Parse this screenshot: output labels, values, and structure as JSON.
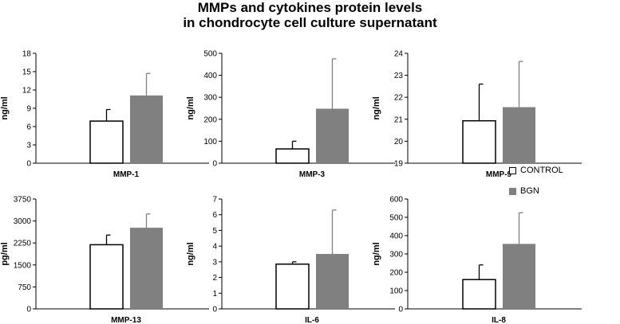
{
  "title_line1": "MMPs and cytokines protein levels",
  "title_line2": "in chondrocyte cell culture supernatant",
  "legend": [
    {
      "label": "CONTROL",
      "color": "#ffffff"
    },
    {
      "label": "BGN",
      "color": "#808080"
    }
  ],
  "chart_data": [
    {
      "type": "bar",
      "title": "MMP-1",
      "ylabel": "ng/ml",
      "ylim": [
        0,
        18
      ],
      "yticks": [
        "0",
        "3",
        "6",
        "9",
        "12",
        "15",
        "18"
      ],
      "series": [
        {
          "name": "CONTROL",
          "values": [
            6.9
          ],
          "error": [
            1.9
          ]
        },
        {
          "name": "BGN",
          "values": [
            11.1
          ],
          "error": [
            3.6
          ]
        }
      ]
    },
    {
      "type": "bar",
      "title": "MMP-3",
      "ylabel": "ng/ml",
      "ylim": [
        0,
        500
      ],
      "yticks": [
        "0",
        "100",
        "200",
        "300",
        "400",
        "500"
      ],
      "series": [
        {
          "name": "CONTROL",
          "values": [
            65
          ],
          "error": [
            35
          ]
        },
        {
          "name": "BGN",
          "values": [
            248
          ],
          "error": [
            227
          ]
        }
      ]
    },
    {
      "type": "bar",
      "title": "MMP-9",
      "ylabel": "ng/ml",
      "ylim": [
        19,
        24
      ],
      "yticks": [
        "19",
        "20",
        "21",
        "22",
        "23",
        "24"
      ],
      "series": [
        {
          "name": "CONTROL",
          "values": [
            20.93
          ],
          "error": [
            1.67
          ]
        },
        {
          "name": "BGN",
          "values": [
            21.55
          ],
          "error": [
            2.08
          ]
        }
      ]
    },
    {
      "type": "bar",
      "title": "MMP-13",
      "ylabel": "pg/ml",
      "ylim": [
        0,
        3750
      ],
      "yticks": [
        "0",
        "750",
        "1500",
        "2250",
        "3000",
        "3750"
      ],
      "series": [
        {
          "name": "CONTROL",
          "values": [
            2190
          ],
          "error": [
            330
          ]
        },
        {
          "name": "BGN",
          "values": [
            2770
          ],
          "error": [
            470
          ]
        }
      ]
    },
    {
      "type": "bar",
      "title": "IL-6",
      "ylabel": "ng/ml",
      "ylim": [
        0,
        7
      ],
      "yticks": [
        "0",
        "1",
        "2",
        "3",
        "4",
        "5",
        "6",
        "7"
      ],
      "series": [
        {
          "name": "CONTROL",
          "values": [
            2.85
          ],
          "error": [
            0.15
          ]
        },
        {
          "name": "BGN",
          "values": [
            3.5
          ],
          "error": [
            2.8
          ]
        }
      ]
    },
    {
      "type": "bar",
      "title": "IL-8",
      "ylabel": "ng/ml",
      "ylim": [
        0,
        600
      ],
      "yticks": [
        "0",
        "100",
        "200",
        "300",
        "400",
        "500",
        "600"
      ],
      "series": [
        {
          "name": "CONTROL",
          "values": [
            160
          ],
          "error": [
            80
          ]
        },
        {
          "name": "BGN",
          "values": [
            355
          ],
          "error": [
            170
          ]
        }
      ]
    }
  ]
}
